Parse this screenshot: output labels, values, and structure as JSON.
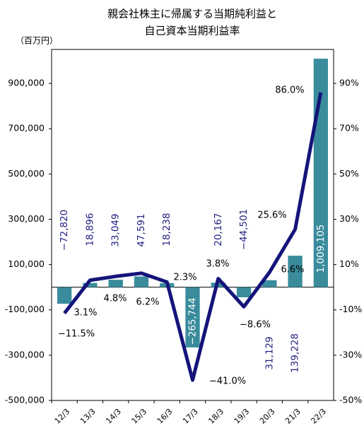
{
  "chart_data": {
    "type": "bar",
    "title": [
      "親会社株主に帰属する当期純利益と",
      "自己資本当期利益率"
    ],
    "y_unit": "（百万円）",
    "categories": [
      "12/3",
      "13/3",
      "14/3",
      "15/3",
      "16/3",
      "17/3",
      "18/3",
      "19/3",
      "20/3",
      "21/3",
      "22/3"
    ],
    "series": [
      {
        "type": "bar",
        "color": "#3a8c9c",
        "label_color": "#1f1f80",
        "values": [
          -72820,
          18896,
          33049,
          47591,
          18238,
          -265744,
          20167,
          -44501,
          31129,
          139228,
          1009105
        ],
        "value_labels": [
          "−72,820",
          "18,896",
          "33,049",
          "47,591",
          "18,238",
          "−265,744",
          "20,167",
          "−44,501",
          "31,129",
          "139,228",
          "1,009,105"
        ]
      },
      {
        "type": "line",
        "axis": "y2",
        "color": "#14147a",
        "values": [
          -11.5,
          3.1,
          4.8,
          6.2,
          2.3,
          -41.0,
          3.8,
          -8.6,
          6.6,
          25.6,
          86.0
        ],
        "value_labels": [
          "−11.5%",
          "3.1%",
          "4.8%",
          "6.2%",
          "2.3%",
          "−41.0%",
          "3.8%",
          "−8.6%",
          "6.6%",
          "25.6%",
          "86.0%"
        ]
      }
    ],
    "ylim": [
      -500000,
      1050000
    ],
    "yticks": [
      {
        "value": -500000,
        "label": "-500,000"
      },
      {
        "value": -300000,
        "label": "-300,000"
      },
      {
        "value": -100000,
        "label": "-100,000"
      },
      {
        "value": 100000,
        "label": "100,000"
      },
      {
        "value": 300000,
        "label": "300,000"
      },
      {
        "value": 500000,
        "label": "500,000"
      },
      {
        "value": 700000,
        "label": "700,000"
      },
      {
        "value": 900000,
        "label": "900,000"
      }
    ],
    "y2lim": [
      -50,
      105
    ],
    "y2ticks": [
      {
        "value": -50,
        "label": "-50%"
      },
      {
        "value": -30,
        "label": "-30%"
      },
      {
        "value": -10,
        "label": "-10%"
      },
      {
        "value": 10,
        "label": "10%"
      },
      {
        "value": 30,
        "label": "30%"
      },
      {
        "value": 50,
        "label": "50%"
      },
      {
        "value": 70,
        "label": "70%"
      },
      {
        "value": 90,
        "label": "90%"
      }
    ]
  }
}
